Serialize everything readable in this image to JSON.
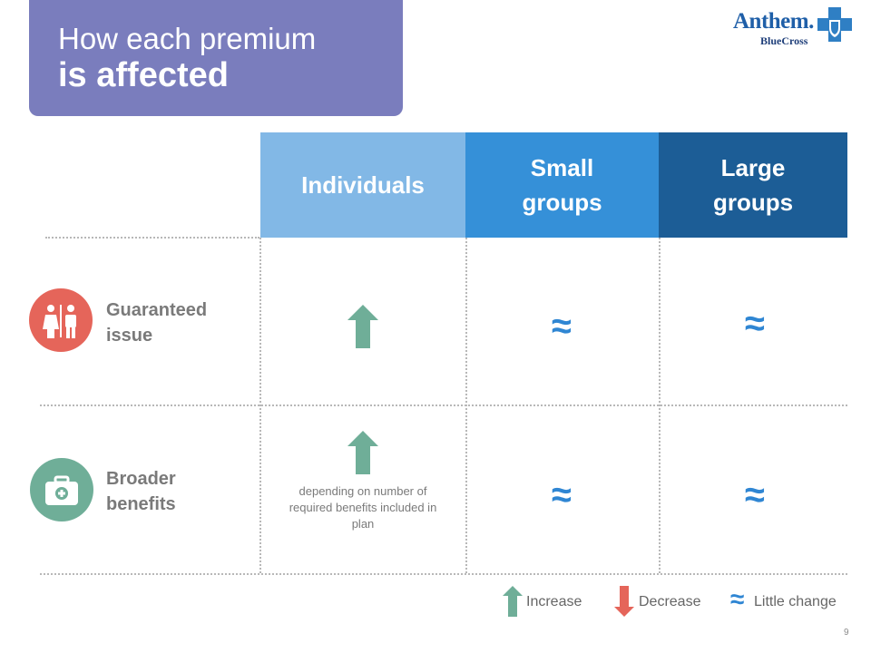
{
  "title": {
    "line1": "How each premium",
    "line2": "is affected"
  },
  "logo": {
    "name": "Anthem.",
    "sub": "BlueCross"
  },
  "columns": [
    {
      "line1": "Individuals",
      "line2": "",
      "color": "#82b8e6"
    },
    {
      "line1": "Small",
      "line2": "groups",
      "color": "#3590d8"
    },
    {
      "line1": "Large",
      "line2": "groups",
      "color": "#1c5d96"
    }
  ],
  "rows": [
    {
      "label_line1": "Guaranteed",
      "label_line2": "issue",
      "icon": "restroom-people-icon",
      "icon_color": "#e5655a",
      "cells": [
        "increase",
        "little-change",
        "little-change"
      ]
    },
    {
      "label_line1": "Broader",
      "label_line2": "benefits",
      "icon": "medical-kit-icon",
      "icon_color": "#6fae98",
      "cells": [
        "increase",
        "little-change",
        "little-change"
      ],
      "note": "depending on number of required benefits included in plan"
    }
  ],
  "symbols": {
    "approx": "≈"
  },
  "legend": {
    "increase": "Increase",
    "decrease": "Decrease",
    "little_change": "Little change"
  },
  "colors": {
    "increase": "#6fae98",
    "decrease": "#e5655a",
    "little_change": "#2f86d3"
  },
  "page_number": "9"
}
